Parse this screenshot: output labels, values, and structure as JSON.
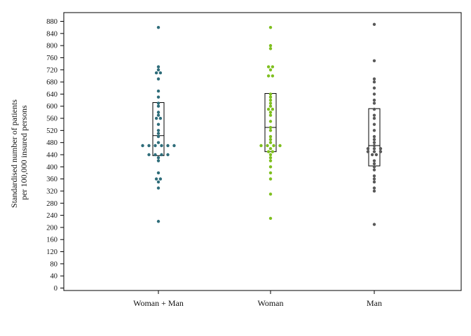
{
  "chart_data": {
    "type": "scatter",
    "subtype": "dot-plot-with-box",
    "ylabel": [
      "Standardised number of patients",
      "per 100,000 insured persons"
    ],
    "xlabel": "",
    "ylim": [
      0,
      880
    ],
    "ytick_step": 40,
    "grid": false,
    "legend": "none",
    "categories": [
      "Woman + Man",
      "Woman",
      "Man"
    ],
    "series": [
      {
        "category": "Woman + Man",
        "color": "#2f6d7a",
        "box": {
          "q1": 437,
          "median": 503,
          "q3": 612
        },
        "points": [
          220,
          330,
          350,
          360,
          360,
          380,
          420,
          430,
          440,
          440,
          440,
          440,
          470,
          470,
          470,
          470,
          470,
          470,
          480,
          500,
          510,
          520,
          540,
          560,
          560,
          570,
          580,
          600,
          610,
          630,
          650,
          690,
          710,
          710,
          720,
          730,
          860
        ]
      },
      {
        "category": "Woman",
        "color": "#7fbf1f",
        "box": {
          "q1": 450,
          "median": 530,
          "q3": 642
        },
        "points": [
          230,
          310,
          360,
          380,
          400,
          420,
          430,
          440,
          450,
          450,
          460,
          470,
          470,
          470,
          470,
          480,
          490,
          500,
          520,
          530,
          550,
          570,
          580,
          590,
          590,
          600,
          610,
          620,
          630,
          640,
          700,
          700,
          720,
          730,
          730,
          790,
          800,
          860
        ]
      },
      {
        "category": "Man",
        "color": "#595959",
        "box": {
          "q1": 403,
          "median": 470,
          "q3": 592
        },
        "points": [
          210,
          320,
          330,
          350,
          360,
          370,
          390,
          400,
          410,
          420,
          440,
          440,
          450,
          450,
          450,
          460,
          460,
          460,
          470,
          480,
          490,
          500,
          520,
          540,
          560,
          570,
          590,
          610,
          620,
          640,
          660,
          680,
          690,
          750,
          870
        ]
      }
    ]
  }
}
